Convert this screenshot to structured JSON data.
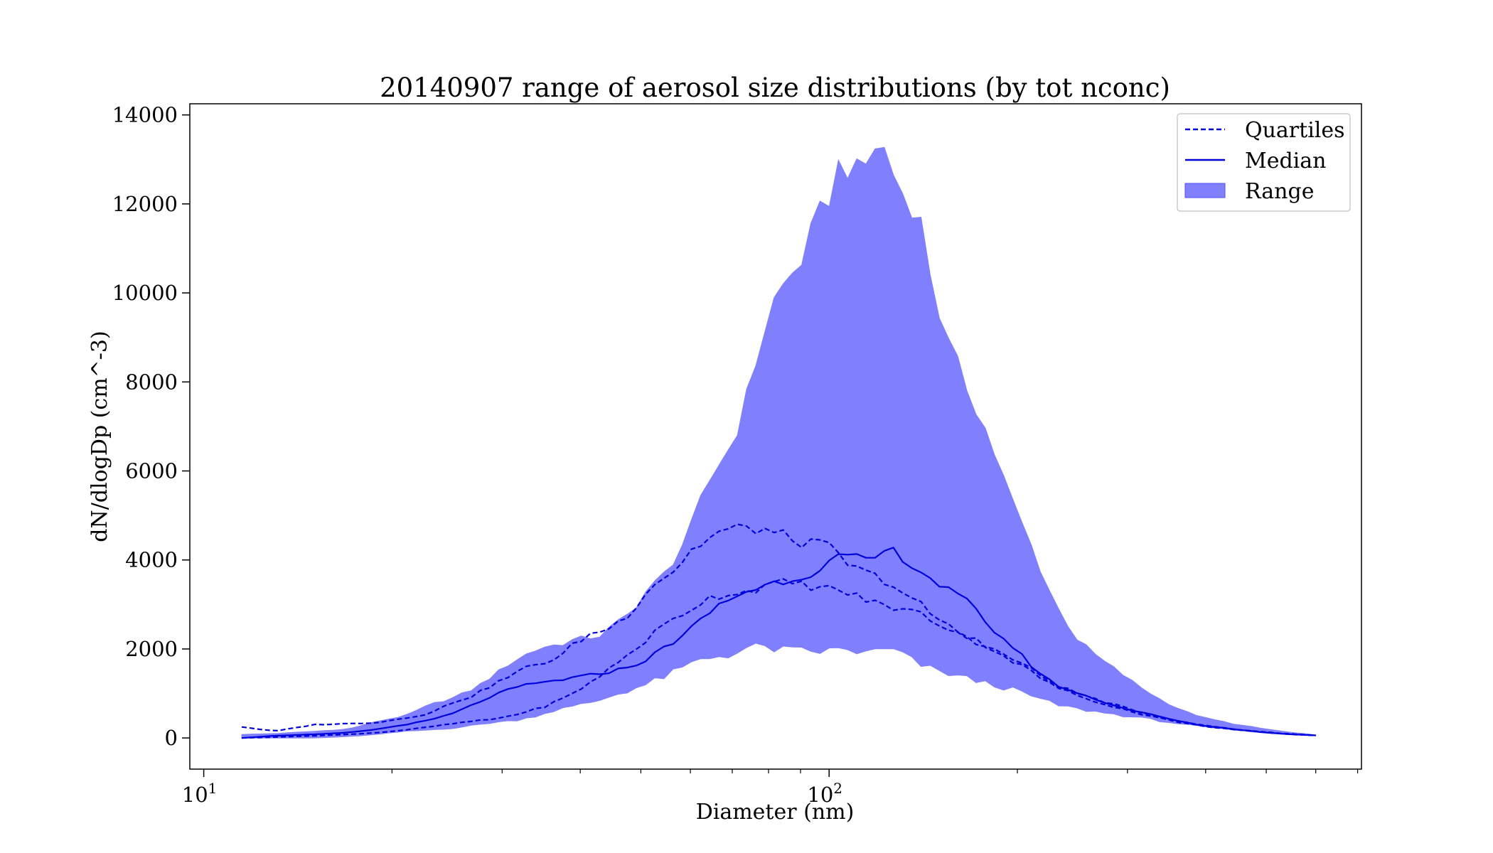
{
  "chart_data": {
    "type": "area",
    "title": "20140907 range of aerosol size distributions (by tot nconc)",
    "xlabel": "Diameter (nm)",
    "ylabel": "dN/dlogDp (cm^-3)",
    "xscale": "log",
    "xlim": [
      9.5,
      710
    ],
    "ylim": [
      -700,
      14250
    ],
    "x_ticks": [
      {
        "value": 10,
        "base": "10",
        "exp": "1"
      },
      {
        "value": 100,
        "base": "10",
        "exp": "2"
      }
    ],
    "y_ticks": [
      "0",
      "2000",
      "4000",
      "6000",
      "8000",
      "10000",
      "12000",
      "14000"
    ],
    "legend_position": "upper right",
    "legend": [
      {
        "key": "quartiles",
        "label": "Quartiles"
      },
      {
        "key": "median",
        "label": "Median"
      },
      {
        "key": "range",
        "label": "Range"
      }
    ],
    "colors": {
      "line": "#0000dd",
      "fill": "#8080ff",
      "axis": "#000000",
      "legend_border": "#cccccc"
    },
    "anchors": {
      "x": [
        11.5,
        13,
        15,
        17,
        19,
        21,
        23,
        25,
        27,
        29,
        31,
        33,
        35,
        37,
        39,
        41,
        43,
        45,
        48,
        51,
        54,
        57,
        60,
        63,
        66,
        70,
        74,
        78,
        82,
        86,
        90,
        95,
        100,
        105,
        110,
        115,
        120,
        125,
        130,
        135,
        140,
        148,
        156,
        165,
        175,
        185,
        195,
        205,
        215,
        230,
        250,
        270,
        290,
        310,
        340,
        370,
        400,
        450,
        500,
        550,
        600
      ],
      "range_max": [
        80,
        100,
        150,
        200,
        380,
        500,
        750,
        900,
        1100,
        1400,
        1700,
        1900,
        2050,
        2100,
        2200,
        2250,
        2300,
        2500,
        2800,
        3300,
        3600,
        4100,
        4700,
        5500,
        6100,
        6600,
        7700,
        9000,
        9900,
        10300,
        10700,
        11500,
        12200,
        13100,
        12600,
        12900,
        13500,
        12900,
        12300,
        12100,
        11600,
        9900,
        8700,
        8000,
        7200,
        6300,
        5400,
        4700,
        4000,
        3000,
        2200,
        1800,
        1500,
        1200,
        850,
        600,
        450,
        300,
        200,
        120,
        70
      ],
      "range_min": [
        0,
        0,
        0,
        30,
        80,
        150,
        180,
        220,
        280,
        350,
        380,
        450,
        550,
        650,
        700,
        780,
        850,
        950,
        1080,
        1200,
        1350,
        1500,
        1650,
        1780,
        1830,
        1900,
        2000,
        2050,
        2000,
        1950,
        1950,
        1950,
        1950,
        2000,
        1950,
        1900,
        1950,
        2000,
        1900,
        1750,
        1650,
        1500,
        1450,
        1350,
        1250,
        1180,
        1100,
        1000,
        900,
        750,
        650,
        580,
        520,
        460,
        380,
        300,
        240,
        170,
        120,
        80,
        50
      ],
      "q3": [
        250,
        150,
        300,
        320,
        350,
        450,
        550,
        800,
        950,
        1200,
        1400,
        1600,
        1700,
        1800,
        2100,
        2300,
        2400,
        2500,
        2800,
        3300,
        3600,
        3800,
        4200,
        4400,
        4600,
        4700,
        4700,
        4700,
        4600,
        4500,
        4400,
        4350,
        4300,
        4000,
        3800,
        3700,
        3600,
        3500,
        3300,
        3100,
        3000,
        2700,
        2500,
        2300,
        2100,
        1950,
        1800,
        1650,
        1450,
        1200,
        1000,
        850,
        720,
        600,
        470,
        350,
        280,
        190,
        130,
        90,
        60
      ],
      "q1": [
        0,
        20,
        50,
        80,
        120,
        180,
        250,
        320,
        380,
        420,
        500,
        600,
        700,
        850,
        1000,
        1200,
        1400,
        1600,
        1900,
        2200,
        2500,
        2700,
        2900,
        3100,
        3200,
        3250,
        3300,
        3400,
        3450,
        3500,
        3450,
        3400,
        3350,
        3300,
        3200,
        3100,
        3000,
        2950,
        2900,
        2850,
        2800,
        2600,
        2450,
        2300,
        2150,
        1950,
        1750,
        1600,
        1400,
        1150,
        950,
        800,
        680,
        560,
        440,
        330,
        260,
        180,
        120,
        80,
        55
      ],
      "median": [
        0,
        50,
        80,
        120,
        200,
        300,
        400,
        550,
        750,
        950,
        1100,
        1200,
        1250,
        1300,
        1350,
        1400,
        1450,
        1500,
        1600,
        1750,
        2000,
        2200,
        2450,
        2700,
        2950,
        3150,
        3300,
        3400,
        3500,
        3550,
        3600,
        3750,
        3950,
        4100,
        4050,
        3950,
        4100,
        4250,
        4100,
        3900,
        3750,
        3500,
        3300,
        3100,
        2750,
        2350,
        2100,
        1800,
        1500,
        1200,
        1000,
        850,
        700,
        600,
        470,
        350,
        270,
        190,
        120,
        80,
        60
      ]
    }
  }
}
